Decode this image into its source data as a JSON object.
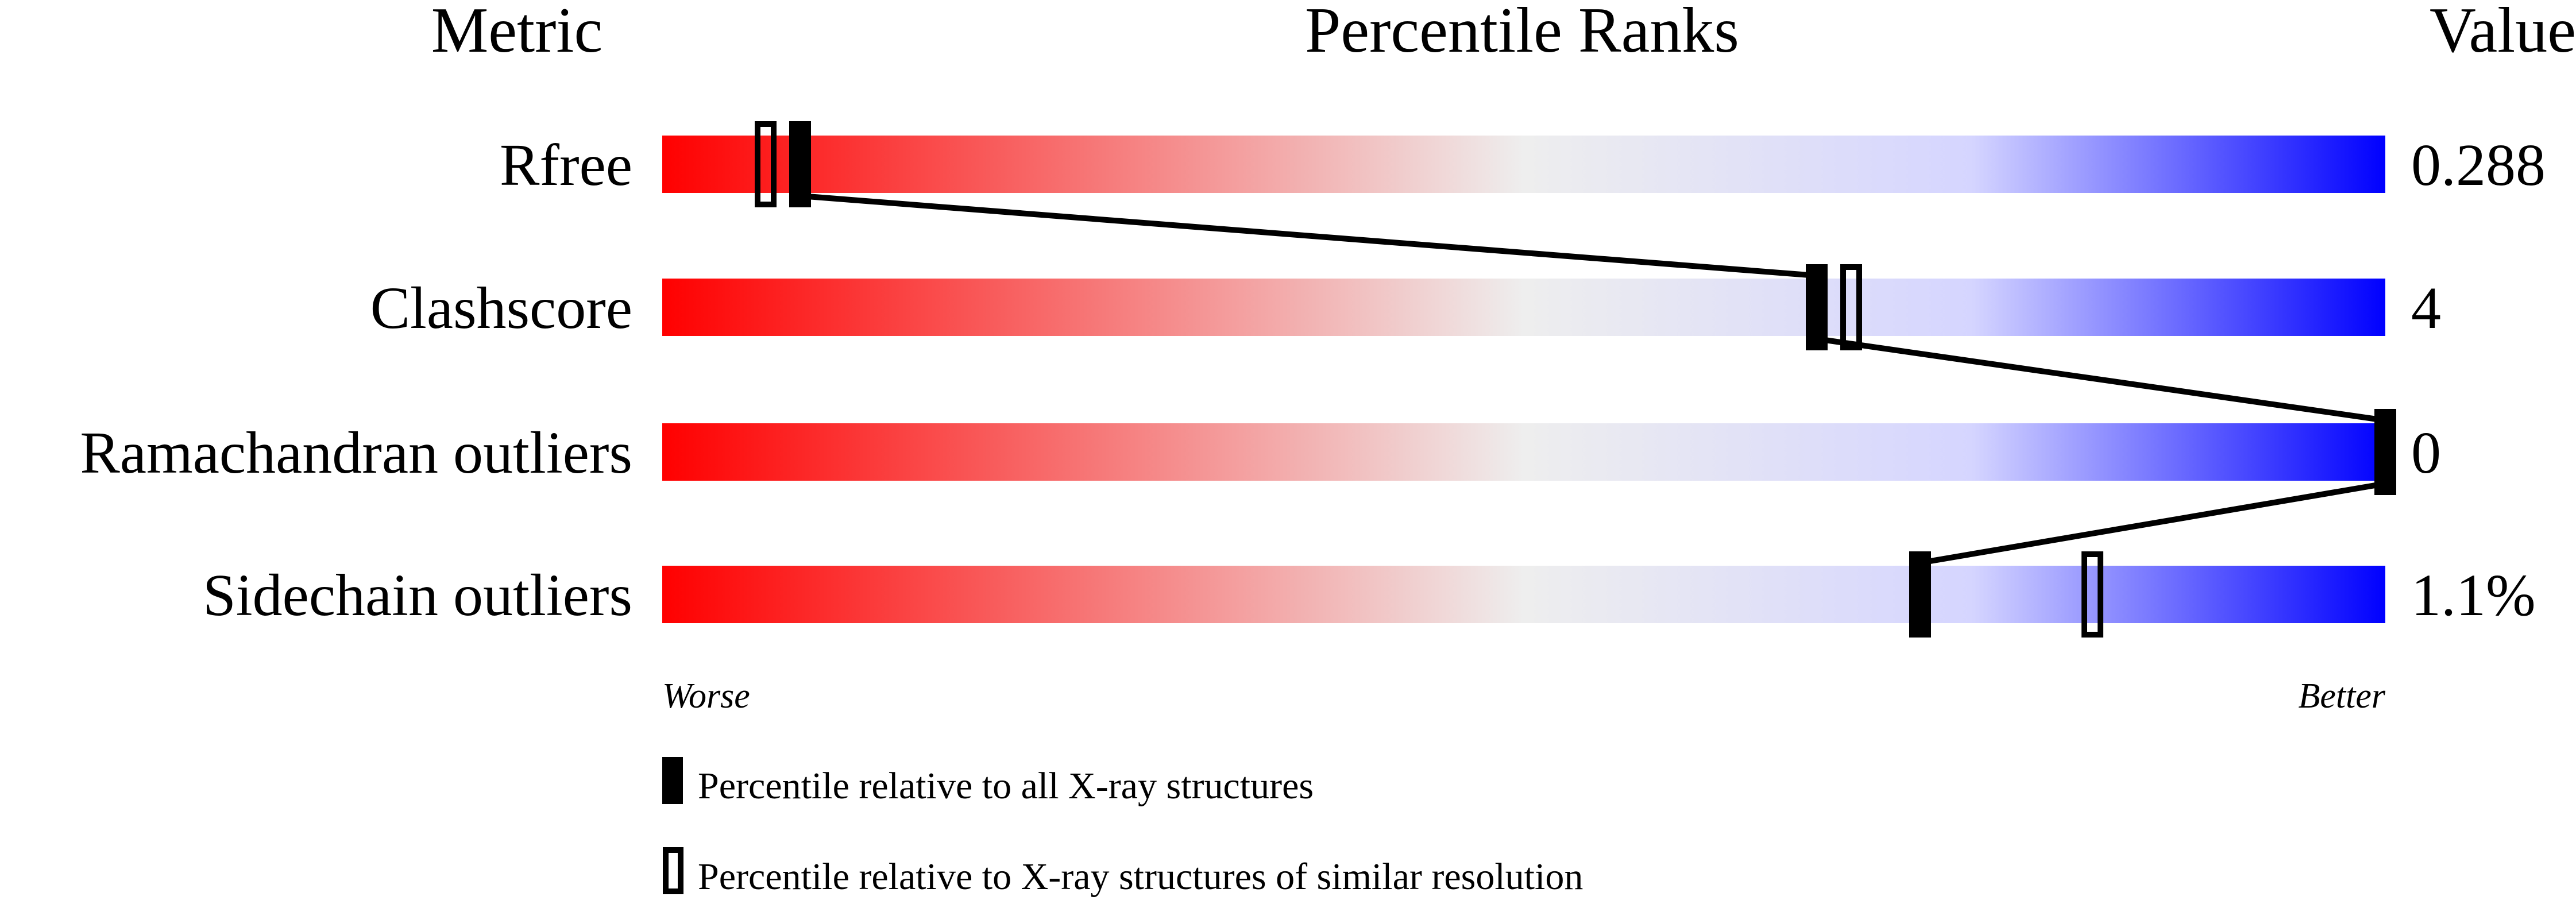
{
  "chart_data": {
    "type": "percentile-slider",
    "headers": {
      "metric": "Metric",
      "ranks": "Percentile Ranks",
      "value": "Value"
    },
    "xlim": [
      0,
      100
    ],
    "metrics": [
      {
        "name": "Rfree",
        "value": "0.288",
        "percentile_all": 8,
        "percentile_similar": 6
      },
      {
        "name": "Clashscore",
        "value": "4",
        "percentile_all": 67,
        "percentile_similar": 69
      },
      {
        "name": "Ramachandran outliers",
        "value": "0",
        "percentile_all": 100,
        "percentile_similar": 100
      },
      {
        "name": "Sidechain outliers",
        "value": "1.1%",
        "percentile_all": 73,
        "percentile_similar": 83
      }
    ],
    "axis_ends": {
      "left": "Worse",
      "right": "Better"
    },
    "legend": {
      "filled": "Percentile relative to all X-ray structures",
      "hollow": "Percentile relative to X-ray structures of similar resolution"
    },
    "colors": {
      "worse": "#ff0000",
      "middle": "#eeeeee",
      "light_blue": "#d5d5ff",
      "better": "#0000ff"
    }
  }
}
